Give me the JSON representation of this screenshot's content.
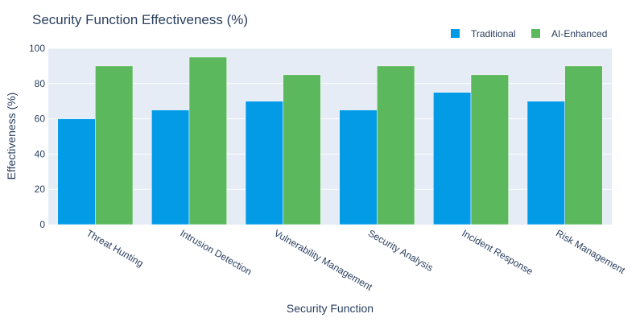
{
  "chart_data": {
    "type": "bar",
    "title": "Security Function Effectiveness (%)",
    "xlabel": "Security Function",
    "ylabel": "Effectiveness (%)",
    "categories": [
      "Threat Hunting",
      "Intrusion Detection",
      "Vulnerability Management",
      "Security Analysis",
      "Incident Response",
      "Risk Management"
    ],
    "series": [
      {
        "name": "Traditional",
        "color": "#039be5",
        "values": [
          60,
          65,
          70,
          65,
          75,
          70
        ]
      },
      {
        "name": "AI-Enhanced",
        "color": "#5cb85c",
        "values": [
          90,
          95,
          85,
          90,
          85,
          90
        ]
      }
    ],
    "ylim": [
      0,
      100
    ],
    "yticks": [
      "0",
      "20",
      "40",
      "60",
      "80",
      "100"
    ],
    "grid": true,
    "legend": "top-right",
    "plot_background": "#e5ecf6",
    "text_color": "#2a3f5f"
  }
}
